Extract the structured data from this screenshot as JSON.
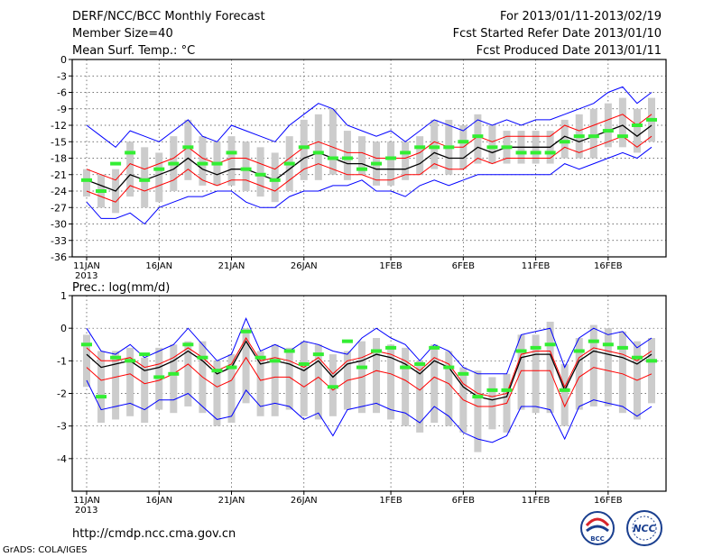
{
  "header": {
    "title": "DERF/NCC/BCC Monthly Forecast",
    "member_size": "Member Size=40",
    "variable": "Mean Surf. Temp.: °C",
    "period": "For 2013/01/11-2013/02/19",
    "started": "Fcst Started Refer Date 2013/01/10",
    "produced": "Fcst Produced Date 2013/01/11"
  },
  "footer": {
    "url": "http://cmdp.ncc.cma.gov.cn",
    "credit": "GrADS: COLA/IGES",
    "logo_left": "BCC",
    "logo_right": "NCC"
  },
  "colors": {
    "envelope": "#0000ff",
    "spread": "#ff0000",
    "mean": "#000000",
    "observed": "#33ee33",
    "box": "#cccccc"
  },
  "chart_data": [
    {
      "type": "line",
      "title": "Mean Surf. Temp.: °C",
      "x_ticks": [
        "11JAN",
        "16JAN",
        "21JAN",
        "26JAN",
        "1FEB",
        "6FEB",
        "11FEB",
        "16FEB"
      ],
      "x_tick_days": [
        0,
        5,
        10,
        15,
        21,
        26,
        31,
        36
      ],
      "x_year_label": "2013",
      "ylim": [
        -36,
        0
      ],
      "y_ticks": [
        0,
        -3,
        -6,
        -9,
        -12,
        -15,
        -18,
        -21,
        -24,
        -27,
        -30,
        -33,
        -36
      ],
      "grid": true,
      "days": 40,
      "series": [
        {
          "name": "max",
          "values": [
            -12,
            -14,
            -16,
            -13,
            -14,
            -15,
            -13,
            -11,
            -14,
            -15,
            -12,
            -13,
            -14,
            -15,
            -12,
            -10,
            -8,
            -9,
            -12,
            -13,
            -14,
            -13,
            -15,
            -13,
            -11,
            -12,
            -13,
            -11,
            -12,
            -11,
            -12,
            -11,
            -11,
            -10,
            -9,
            -8,
            -6,
            -5,
            -8,
            -6
          ]
        },
        {
          "name": "upper",
          "values": [
            -20,
            -21,
            -22,
            -19,
            -20,
            -19,
            -18,
            -16,
            -18,
            -19,
            -18,
            -18,
            -19,
            -20,
            -18,
            -16,
            -15,
            -16,
            -17,
            -17,
            -18,
            -18,
            -18,
            -17,
            -15,
            -16,
            -16,
            -14,
            -15,
            -14,
            -14,
            -14,
            -14,
            -12,
            -13,
            -12,
            -11,
            -10,
            -12,
            -10
          ]
        },
        {
          "name": "mean",
          "values": [
            -22,
            -23,
            -24,
            -21,
            -22,
            -21,
            -20,
            -18,
            -20,
            -21,
            -20,
            -20,
            -21,
            -22,
            -20,
            -18,
            -17,
            -18,
            -19,
            -19,
            -20,
            -20,
            -20,
            -19,
            -17,
            -18,
            -18,
            -16,
            -17,
            -16,
            -16,
            -16,
            -16,
            -14,
            -15,
            -14,
            -13,
            -12,
            -14,
            -12
          ]
        },
        {
          "name": "lower",
          "values": [
            -24,
            -25,
            -26,
            -23,
            -24,
            -23,
            -22,
            -20,
            -22,
            -23,
            -22,
            -22,
            -23,
            -24,
            -22,
            -20,
            -19,
            -20,
            -21,
            -21,
            -22,
            -22,
            -21,
            -21,
            -19,
            -20,
            -20,
            -18,
            -19,
            -18,
            -18,
            -18,
            -18,
            -16,
            -17,
            -16,
            -15,
            -14,
            -16,
            -14
          ]
        },
        {
          "name": "min",
          "values": [
            -26,
            -29,
            -29,
            -28,
            -30,
            -27,
            -26,
            -25,
            -25,
            -24,
            -24,
            -26,
            -27,
            -27,
            -25,
            -24,
            -24,
            -23,
            -23,
            -22,
            -24,
            -24,
            -25,
            -23,
            -22,
            -23,
            -22,
            -21,
            -21,
            -21,
            -21,
            -21,
            -21,
            -19,
            -20,
            -19,
            -18,
            -17,
            -18,
            -16
          ]
        }
      ],
      "observed": [
        -22,
        -24,
        -19,
        -17,
        -22,
        -20,
        -19,
        -16,
        -19,
        -19,
        -17,
        -20,
        -21,
        -22,
        -19,
        -16,
        -17,
        -18,
        -18,
        -20,
        -19,
        -18,
        -17,
        -16,
        -16,
        -16,
        -15,
        -14,
        -16,
        -16,
        -17,
        -17,
        -17,
        -15,
        -14,
        -14,
        -13,
        -14,
        -12,
        -11
      ],
      "box_high": [
        -20,
        -21,
        -20,
        -15,
        -16,
        -17,
        -14,
        -11,
        -14,
        -15,
        -14,
        -15,
        -16,
        -17,
        -14,
        -11,
        -10,
        -9,
        -13,
        -14,
        -15,
        -15,
        -15,
        -14,
        -11,
        -11,
        -12,
        -10,
        -12,
        -13,
        -13,
        -13,
        -13,
        -11,
        -10,
        -9,
        -8,
        -7,
        -9,
        -7
      ],
      "box_low": [
        -25,
        -27,
        -28,
        -25,
        -27,
        -26,
        -24,
        -22,
        -23,
        -23,
        -23,
        -24,
        -25,
        -26,
        -24,
        -22,
        -22,
        -21,
        -22,
        -21,
        -23,
        -23,
        -22,
        -21,
        -20,
        -21,
        -20,
        -19,
        -19,
        -19,
        -19,
        -19,
        -19,
        -18,
        -18,
        -18,
        -16,
        -16,
        -17,
        -15
      ]
    },
    {
      "type": "line",
      "title": "Prec.: log(mm/d)",
      "x_ticks": [
        "11JAN",
        "16JAN",
        "21JAN",
        "26JAN",
        "1FEB",
        "6FEB",
        "11FEB",
        "16FEB"
      ],
      "x_tick_days": [
        0,
        5,
        10,
        15,
        21,
        26,
        31,
        36
      ],
      "x_year_label": "2013",
      "ylim": [
        -5,
        1
      ],
      "y_ticks": [
        1,
        0,
        -1,
        -2,
        -3,
        -4
      ],
      "grid": true,
      "days": 40,
      "series": [
        {
          "name": "max",
          "values": [
            0.0,
            -0.7,
            -0.8,
            -0.5,
            -0.9,
            -0.7,
            -0.5,
            0.0,
            -0.5,
            -1.0,
            -0.8,
            0.3,
            -0.7,
            -0.5,
            -0.7,
            -0.4,
            -0.5,
            -0.7,
            -0.8,
            -0.3,
            0.0,
            -0.3,
            -0.5,
            -1.0,
            -0.5,
            -0.7,
            -1.2,
            -1.4,
            -1.4,
            -1.4,
            -0.2,
            -0.1,
            0.0,
            -1.2,
            -0.3,
            0.0,
            -0.2,
            -0.1,
            -0.6,
            -0.3
          ]
        },
        {
          "name": "upper",
          "values": [
            -0.6,
            -1.0,
            -1.0,
            -0.9,
            -1.2,
            -1.1,
            -0.9,
            -0.6,
            -0.9,
            -1.3,
            -1.1,
            -0.3,
            -1.0,
            -0.9,
            -1.0,
            -1.2,
            -0.9,
            -1.4,
            -1.0,
            -0.9,
            -0.7,
            -0.8,
            -1.0,
            -1.3,
            -0.9,
            -1.1,
            -1.7,
            -2.0,
            -2.1,
            -2.0,
            -0.8,
            -0.7,
            -0.7,
            -1.8,
            -0.9,
            -0.6,
            -0.7,
            -0.8,
            -1.0,
            -0.7
          ]
        },
        {
          "name": "mean",
          "values": [
            -0.8,
            -1.2,
            -1.1,
            -1.0,
            -1.3,
            -1.2,
            -1.0,
            -0.7,
            -1.0,
            -1.4,
            -1.2,
            -0.4,
            -1.1,
            -1.0,
            -1.1,
            -1.3,
            -1.0,
            -1.5,
            -1.1,
            -1.0,
            -0.8,
            -0.9,
            -1.1,
            -1.4,
            -1.0,
            -1.2,
            -1.8,
            -2.1,
            -2.2,
            -2.1,
            -0.9,
            -0.8,
            -0.8,
            -1.9,
            -1.0,
            -0.7,
            -0.8,
            -0.9,
            -1.1,
            -0.8
          ]
        },
        {
          "name": "lower",
          "values": [
            -1.2,
            -1.6,
            -1.5,
            -1.4,
            -1.7,
            -1.6,
            -1.4,
            -1.1,
            -1.5,
            -1.8,
            -1.6,
            -0.9,
            -1.6,
            -1.5,
            -1.5,
            -1.8,
            -1.5,
            -1.9,
            -1.6,
            -1.5,
            -1.3,
            -1.4,
            -1.6,
            -1.9,
            -1.5,
            -1.7,
            -2.2,
            -2.4,
            -2.4,
            -2.3,
            -1.3,
            -1.3,
            -1.3,
            -2.4,
            -1.5,
            -1.2,
            -1.3,
            -1.4,
            -1.6,
            -1.4
          ]
        },
        {
          "name": "min",
          "values": [
            -1.6,
            -2.5,
            -2.4,
            -2.3,
            -2.5,
            -2.2,
            -2.2,
            -2.0,
            -2.4,
            -2.8,
            -2.7,
            -1.9,
            -2.4,
            -2.3,
            -2.4,
            -2.8,
            -2.6,
            -3.3,
            -2.5,
            -2.4,
            -2.3,
            -2.5,
            -2.6,
            -2.9,
            -2.4,
            -2.7,
            -3.2,
            -3.4,
            -3.5,
            -3.3,
            -2.4,
            -2.4,
            -2.5,
            -3.4,
            -2.4,
            -2.2,
            -2.3,
            -2.4,
            -2.7,
            -2.4
          ]
        }
      ],
      "observed": [
        -0.5,
        -2.1,
        -0.9,
        -1.0,
        -0.8,
        -1.5,
        -1.4,
        -0.5,
        -0.9,
        -1.3,
        -1.2,
        -0.1,
        -0.9,
        -1.0,
        -0.7,
        -1.1,
        -0.8,
        -1.8,
        -0.4,
        -1.2,
        -0.7,
        -0.6,
        -1.2,
        -1.1,
        -0.6,
        -1.2,
        -1.4,
        -2.1,
        -1.9,
        -1.9,
        -0.7,
        -0.6,
        -0.5,
        -1.9,
        -0.7,
        -0.4,
        -0.5,
        -0.6,
        -0.9,
        -1.0
      ],
      "box_high": [
        -0.2,
        -0.7,
        -0.7,
        -0.6,
        -0.9,
        -0.6,
        -0.5,
        -0.4,
        -0.4,
        -1.0,
        -0.8,
        0.0,
        -0.7,
        -0.5,
        -0.6,
        -0.4,
        -0.5,
        -0.8,
        -0.7,
        -0.4,
        -0.3,
        -0.5,
        -0.6,
        -1.0,
        -0.5,
        -0.7,
        -1.2,
        -1.3,
        -1.5,
        -1.4,
        -0.2,
        -0.2,
        0.2,
        -1.1,
        -0.3,
        0.1,
        0.0,
        -0.1,
        -0.4,
        -0.3
      ],
      "box_low": [
        -1.8,
        -2.9,
        -2.8,
        -2.7,
        -2.9,
        -2.5,
        -2.6,
        -2.4,
        -2.6,
        -3.0,
        -2.9,
        -2.3,
        -2.7,
        -2.7,
        -2.5,
        -2.7,
        -2.8,
        -2.7,
        -2.5,
        -2.6,
        -2.6,
        -2.8,
        -3.0,
        -3.2,
        -2.9,
        -3.0,
        -3.2,
        -3.8,
        -3.1,
        -3.2,
        -2.5,
        -2.6,
        -2.6,
        -3.0,
        -2.5,
        -2.4,
        -2.4,
        -2.6,
        -2.8,
        -2.3
      ]
    }
  ]
}
